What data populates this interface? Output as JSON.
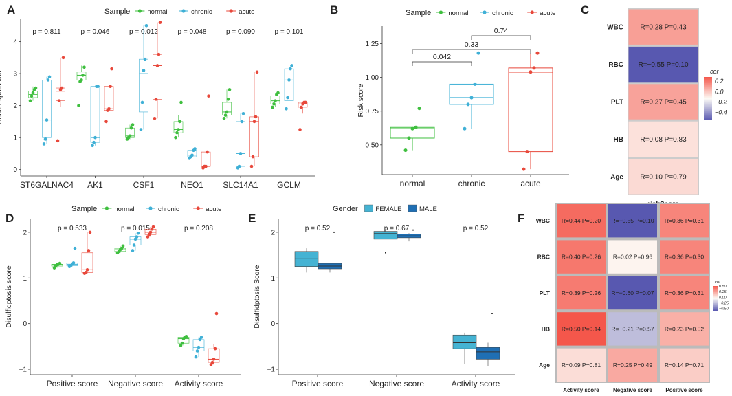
{
  "colors": {
    "normal": "#3fbf3f",
    "chronic": "#3fb0d6",
    "acute": "#e8483b",
    "female": "#45b3d3",
    "male": "#1f6fb4",
    "heat_pos": "#f4574b",
    "heat_neg": "#5858b0",
    "heat_mid": "#fdfbf6"
  },
  "chart_data": [
    {
      "panel": "A",
      "type": "box",
      "title": "",
      "xlabel": "",
      "ylabel": "Gene expression",
      "ylim": [
        -0.2,
        4.7
      ],
      "yticks": [
        0,
        1,
        2,
        3,
        4
      ],
      "legend": {
        "title": "Sample",
        "entries": [
          "normal",
          "chronic",
          "acute"
        ],
        "placement": "top"
      },
      "categories": [
        "ST6GALNAC4",
        "AK1",
        "CSF1",
        "NEO1",
        "SLC14A1",
        "GCLM"
      ],
      "pvalues": [
        "p = 0.811",
        "p = 0.046",
        "p = 0.012",
        "p = 0.048",
        "p = 0.090",
        "p = 0.101"
      ],
      "series": [
        {
          "name": "normal",
          "boxes": [
            [
              2.15,
              2.25,
              2.35,
              2.45,
              2.6
            ],
            [
              2.75,
              2.8,
              2.95,
              3.05,
              3.25
            ],
            [
              0.95,
              1.0,
              1.05,
              1.3,
              1.4
            ],
            [
              1.0,
              1.15,
              1.25,
              1.5,
              1.7
            ],
            [
              1.6,
              1.7,
              1.8,
              2.1,
              2.5
            ],
            [
              1.95,
              2.05,
              2.15,
              2.3,
              2.4
            ]
          ],
          "points": [
            [
              2.15,
              2.3,
              2.4,
              2.5,
              2.55
            ],
            [
              2.0,
              2.75,
              2.8,
              2.95,
              3.2
            ],
            [
              0.95,
              1.0,
              1.05,
              1.3,
              1.4
            ],
            [
              1.0,
              1.15,
              1.25,
              1.5,
              2.1
            ],
            [
              1.6,
              1.7,
              1.8,
              2.2,
              2.5
            ],
            [
              1.95,
              2.05,
              2.15,
              2.35,
              2.4
            ]
          ]
        },
        {
          "name": "chronic",
          "boxes": [
            [
              0.8,
              1.0,
              1.55,
              2.8,
              2.9
            ],
            [
              0.75,
              0.85,
              1.0,
              2.6,
              2.6
            ],
            [
              1.25,
              1.8,
              3.0,
              3.45,
              4.5
            ],
            [
              0.35,
              0.4,
              0.45,
              0.6,
              0.65
            ],
            [
              0.05,
              0.1,
              0.5,
              1.5,
              1.75
            ],
            [
              2.0,
              2.15,
              2.8,
              3.15,
              3.25
            ]
          ],
          "points": [
            [
              0.8,
              0.95,
              1.55,
              2.8,
              2.9
            ],
            [
              0.75,
              0.85,
              1.0,
              2.6,
              2.6
            ],
            [
              1.25,
              2.1,
              3.1,
              3.45,
              4.5
            ],
            [
              0.35,
              0.4,
              0.45,
              0.6,
              0.65
            ],
            [
              0.05,
              0.1,
              0.5,
              1.5,
              1.75
            ],
            [
              1.9,
              2.25,
              2.8,
              3.15,
              3.25
            ]
          ]
        },
        {
          "name": "acute",
          "boxes": [
            [
              1.95,
              2.15,
              2.45,
              2.55,
              3.5
            ],
            [
              1.5,
              1.85,
              1.9,
              2.6,
              3.15
            ],
            [
              1.6,
              2.2,
              3.25,
              3.6,
              4.6
            ],
            [
              0.05,
              0.1,
              0.1,
              0.55,
              2.3
            ],
            [
              0.1,
              0.4,
              1.5,
              1.65,
              3.05
            ],
            [
              1.75,
              1.95,
              2.05,
              2.1,
              2.1
            ]
          ],
          "points": [
            [
              0.9,
              2.15,
              2.5,
              2.55,
              3.5
            ],
            [
              1.5,
              1.85,
              1.9,
              2.6,
              3.15
            ],
            [
              1.6,
              2.2,
              3.25,
              3.6,
              4.6
            ],
            [
              0.05,
              0.1,
              0.1,
              0.55,
              2.3
            ],
            [
              0.1,
              0.4,
              1.5,
              1.65,
              3.05
            ],
            [
              1.25,
              1.95,
              2.05,
              2.1,
              2.1
            ]
          ]
        }
      ]
    },
    {
      "panel": "B",
      "type": "box",
      "title": "",
      "xlabel": "",
      "ylabel": "Risk score",
      "ylim": [
        0.28,
        1.38
      ],
      "yticks": [
        0.5,
        0.75,
        1.0,
        1.25
      ],
      "ytick_labels": [
        "0.50",
        "0.75",
        "1.00",
        "1.25"
      ],
      "legend": {
        "title": "Sample",
        "entries": [
          "normal",
          "chronic",
          "acute"
        ],
        "placement": "top"
      },
      "categories": [
        "normal",
        "chronic",
        "acute"
      ],
      "boxes": [
        [
          0.46,
          0.55,
          0.62,
          0.63,
          0.63
        ],
        [
          0.62,
          0.8,
          0.85,
          0.95,
          0.95
        ],
        [
          0.32,
          0.45,
          1.04,
          1.07,
          1.18
        ]
      ],
      "points": [
        [
          0.46,
          0.55,
          0.62,
          0.63,
          0.77
        ],
        [
          0.62,
          0.8,
          0.85,
          0.95,
          1.18
        ],
        [
          0.32,
          0.45,
          1.04,
          1.07,
          1.18
        ]
      ],
      "comparisons": [
        {
          "from": 0,
          "to": 1,
          "label": "0.042"
        },
        {
          "from": 0,
          "to": 2,
          "label": "0.33"
        },
        {
          "from": 1,
          "to": 2,
          "label": "0.74"
        }
      ]
    },
    {
      "panel": "C",
      "type": "heatmap",
      "title": "",
      "xlabel": "riskScore",
      "legend_title": "cor",
      "legend_ticks": [
        "0.2",
        "0.0",
        "−0.2",
        "−0.4"
      ],
      "legend_values": [
        0.2,
        0.0,
        -0.2,
        -0.4
      ],
      "legend_range": [
        -0.55,
        0.28
      ],
      "rows": [
        "WBC",
        "RBC",
        "PLT",
        "HB",
        "Age"
      ],
      "cols": [
        "riskScore"
      ],
      "values": [
        [
          0.28
        ],
        [
          -0.55
        ],
        [
          0.27
        ],
        [
          0.08
        ],
        [
          0.1
        ]
      ],
      "labels": [
        [
          "R=0.28 P=0.43"
        ],
        [
          "R=−0.55 P=0.10"
        ],
        [
          "R=0.27 P=0.45"
        ],
        [
          "R=0.08 P=0.83"
        ],
        [
          "R=0.10 P=0.79"
        ]
      ]
    },
    {
      "panel": "D",
      "type": "box",
      "title": "",
      "xlabel": "",
      "ylabel": "Disulfidptosis score",
      "ylim": [
        -1.12,
        2.3
      ],
      "yticks": [
        -1,
        0,
        1,
        2
      ],
      "ytick_labels": [
        "−1",
        "0",
        "1",
        "2"
      ],
      "legend": {
        "title": "Sample",
        "entries": [
          "normal",
          "chronic",
          "acute"
        ],
        "placement": "top"
      },
      "categories": [
        "Positive score",
        "Negative score",
        "Activity score"
      ],
      "pvalues": [
        "p = 0.533",
        "p = 0.015",
        "p = 0.208"
      ],
      "series": [
        {
          "name": "normal",
          "boxes": [
            [
              1.22,
              1.26,
              1.29,
              1.3,
              1.32
            ],
            [
              1.55,
              1.58,
              1.62,
              1.65,
              1.7
            ],
            [
              -0.48,
              -0.43,
              -0.33,
              -0.3,
              -0.28
            ]
          ],
          "points": [
            [
              1.22,
              1.26,
              1.29,
              1.3,
              1.32
            ],
            [
              1.55,
              1.58,
              1.62,
              1.65,
              1.7
            ],
            [
              -0.48,
              -0.43,
              -0.33,
              -0.3,
              -0.28
            ]
          ]
        },
        {
          "name": "chronic",
          "boxes": [
            [
              1.25,
              1.27,
              1.3,
              1.33,
              1.34
            ],
            [
              1.6,
              1.72,
              1.85,
              1.9,
              1.98
            ],
            [
              -0.73,
              -0.6,
              -0.52,
              -0.35,
              -0.3
            ]
          ],
          "points": [
            [
              1.25,
              1.27,
              1.3,
              1.33,
              1.65
            ],
            [
              1.6,
              1.72,
              1.85,
              1.9,
              1.98
            ],
            [
              -0.73,
              -0.6,
              -0.52,
              -0.35,
              -0.3
            ]
          ]
        },
        {
          "name": "acute",
          "boxes": [
            [
              1.1,
              1.12,
              1.18,
              1.55,
              2.0
            ],
            [
              1.9,
              1.95,
              2.0,
              2.07,
              2.12
            ],
            [
              -0.9,
              -0.85,
              -0.78,
              -0.55,
              -0.45
            ]
          ],
          "points": [
            [
              1.1,
              1.12,
              1.18,
              1.6,
              2.0
            ],
            [
              1.9,
              1.95,
              2.0,
              2.07,
              2.12
            ],
            [
              -0.9,
              -0.85,
              -0.78,
              -0.55,
              0.22
            ]
          ]
        }
      ]
    },
    {
      "panel": "E",
      "type": "box",
      "title": "",
      "xlabel": "",
      "ylabel": "Disulfidptosis Score",
      "ylim": [
        -1.12,
        2.3
      ],
      "yticks": [
        -1,
        0,
        1,
        2
      ],
      "ytick_labels": [
        "−1",
        "0",
        "1",
        "2"
      ],
      "legend": {
        "title": "Gender",
        "entries": [
          "FEMALE",
          "MALE"
        ],
        "placement": "top"
      },
      "categories": [
        "Positive score",
        "Negative score",
        "Activity score"
      ],
      "pvalues": [
        "p = 0.52",
        "p = 0.67",
        "p = 0.52"
      ],
      "series": [
        {
          "name": "FEMALE",
          "boxes": [
            [
              1.12,
              1.25,
              1.42,
              1.58,
              1.65
            ],
            [
              1.85,
              1.85,
              1.97,
              2.02,
              2.05
            ],
            [
              -0.88,
              -0.55,
              -0.42,
              -0.25,
              -0.2
            ]
          ],
          "outliers": [
            [],
            [
              1.55
            ],
            []
          ]
        },
        {
          "name": "MALE",
          "boxes": [
            [
              1.12,
              1.2,
              1.26,
              1.32,
              1.32
            ],
            [
              1.8,
              1.88,
              1.92,
              1.96,
              1.98
            ],
            [
              -0.93,
              -0.78,
              -0.62,
              -0.52,
              -0.42
            ]
          ],
          "outliers": [
            [
              2.0
            ],
            [
              2.05
            ],
            [
              0.22
            ]
          ]
        }
      ]
    },
    {
      "panel": "F",
      "type": "heatmap",
      "title": "",
      "legend_title": "cor",
      "legend_ticks": [
        "0.50",
        "0.25",
        "0.00",
        "−0.25",
        "−0.50"
      ],
      "legend_values": [
        0.5,
        0.25,
        0.0,
        -0.25,
        -0.5
      ],
      "legend_range": [
        -0.6,
        0.5
      ],
      "rows": [
        "WBC",
        "RBC",
        "PLT",
        "HB",
        "Age"
      ],
      "cols": [
        "Activity score",
        "Negative score",
        "Positive score"
      ],
      "values": [
        [
          0.44,
          -0.55,
          0.36
        ],
        [
          0.4,
          0.02,
          0.36
        ],
        [
          0.39,
          -0.6,
          0.36
        ],
        [
          0.5,
          -0.21,
          0.23
        ],
        [
          0.09,
          0.25,
          0.14
        ]
      ],
      "labels": [
        [
          "R=0.44 P=0.20",
          "R=−0.55 P=0.10",
          "R=0.36 P=0.31"
        ],
        [
          "R=0.40 P=0.26",
          "R=0.02 P=0.96",
          "R=0.36 P=0.30"
        ],
        [
          "R=0.39 P=0.26",
          "R=−0.60 P=0.07",
          "R=0.36 P=0.31"
        ],
        [
          "R=0.50 P=0.14",
          "R=−0.21 P=0.57",
          "R=0.23 P=0.52"
        ],
        [
          "R=0.09 P=0.81",
          "R=0.25 P=0.49",
          "R=0.14 P=0.71"
        ]
      ]
    }
  ]
}
